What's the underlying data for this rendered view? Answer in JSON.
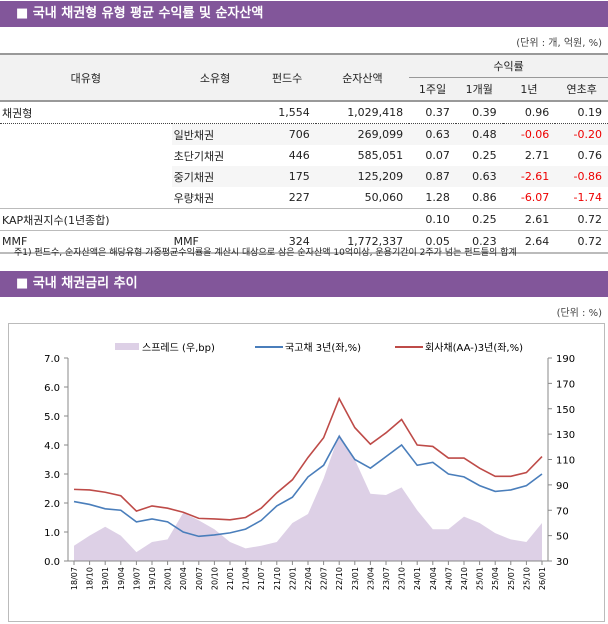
{
  "section1": {
    "title": "■ 국내 채권형 유형 평균 수익률 및 순자산액",
    "unit": "(단위 : 개, 억원, %)"
  },
  "table": {
    "headers": {
      "major": "대유형",
      "minor": "소유형",
      "funds": "펀드수",
      "aum": "순자산액",
      "returns": "수익률",
      "w1": "1주일",
      "m1": "1개월",
      "y1": "1년",
      "ytd": "연초후"
    },
    "rows": [
      {
        "major": "채권형",
        "minor": "",
        "funds": "1,554",
        "aum": "1,029,418",
        "w1": "0.37",
        "m1": "0.39",
        "y1": "0.96",
        "ytd": "0.19"
      },
      {
        "major": "",
        "minor": "일반채권",
        "funds": "706",
        "aum": "269,099",
        "w1": "0.63",
        "m1": "0.48",
        "y1": "-0.06",
        "ytd": "-0.20"
      },
      {
        "major": "",
        "minor": "초단기채권",
        "funds": "446",
        "aum": "585,051",
        "w1": "0.07",
        "m1": "0.25",
        "y1": "2.71",
        "ytd": "0.76"
      },
      {
        "major": "",
        "minor": "중기채권",
        "funds": "175",
        "aum": "125,209",
        "w1": "0.87",
        "m1": "0.63",
        "y1": "-2.61",
        "ytd": "-0.86"
      },
      {
        "major": "",
        "minor": "우량채권",
        "funds": "227",
        "aum": "50,060",
        "w1": "1.28",
        "m1": "0.86",
        "y1": "-6.07",
        "ytd": "-1.74"
      },
      {
        "major": "KAP채권지수(1년종합)",
        "minor": "",
        "funds": "",
        "aum": "",
        "w1": "0.10",
        "m1": "0.25",
        "y1": "2.61",
        "ytd": "0.72"
      },
      {
        "major": "MMF",
        "minor": "MMF",
        "funds": "324",
        "aum": "1,772,337",
        "w1": "0.05",
        "m1": "0.23",
        "y1": "2.64",
        "ytd": "0.72"
      }
    ],
    "note": "주1) 펀드수, 순자산액은 해당유형 가중평균수익률을 계산시 대상으로 삼은 순자산액 10억이상, 운용기간이 2주가 넘는 펀드들의 합계"
  },
  "section2": {
    "title": "■ 국내 채권금리 추이",
    "unit": "(단위 : %)"
  },
  "chart_data": {
    "type": "line",
    "x": [
      "18/07",
      "18/10",
      "19/01",
      "19/04",
      "19/07",
      "19/10",
      "20/01",
      "20/04",
      "20/07",
      "20/10",
      "21/01",
      "21/04",
      "21/07",
      "21/10",
      "22/01",
      "22/04",
      "22/07",
      "22/10",
      "23/01",
      "23/04",
      "23/07",
      "23/10",
      "24/01",
      "24/04",
      "24/07",
      "24/10",
      "25/01",
      "25/04",
      "25/07",
      "25/10",
      "26/01"
    ],
    "series": [
      {
        "name": "스프레드 (우,bp)",
        "type": "area",
        "axis": "right",
        "color": "#ddd0e6",
        "values": [
          42,
          50,
          57,
          50,
          37,
          45,
          47,
          68,
          62,
          55,
          45,
          40,
          42,
          45,
          60,
          67,
          95,
          130,
          110,
          83,
          82,
          88,
          70,
          55,
          55,
          65,
          60,
          52,
          47,
          45,
          60
        ]
      },
      {
        "name": "국고채 3년(좌,%)",
        "type": "line",
        "axis": "left",
        "color": "#4a7ebb",
        "values": [
          2.05,
          1.95,
          1.8,
          1.75,
          1.35,
          1.45,
          1.35,
          1.0,
          0.85,
          0.9,
          0.97,
          1.1,
          1.4,
          1.9,
          2.2,
          2.9,
          3.3,
          4.3,
          3.5,
          3.2,
          3.6,
          4.0,
          3.3,
          3.4,
          3.0,
          2.9,
          2.6,
          2.4,
          2.45,
          2.6,
          3.0
        ]
      },
      {
        "name": "회사채(AA-)3년(좌,%)",
        "type": "line",
        "axis": "left",
        "color": "#be4b48",
        "values": [
          2.47,
          2.45,
          2.37,
          2.25,
          1.72,
          1.9,
          1.82,
          1.68,
          1.47,
          1.45,
          1.42,
          1.5,
          1.82,
          2.35,
          2.8,
          3.57,
          4.25,
          5.6,
          4.6,
          4.03,
          4.42,
          4.88,
          4.0,
          3.95,
          3.55,
          3.55,
          3.2,
          2.92,
          2.92,
          3.05,
          3.6
        ]
      }
    ],
    "yleft": {
      "min": 0,
      "max": 7,
      "ticks": [
        "0.0",
        "1.0",
        "2.0",
        "3.0",
        "4.0",
        "5.0",
        "6.0",
        "7.0"
      ]
    },
    "yright": {
      "min": 30,
      "max": 190,
      "ticks": [
        "30",
        "50",
        "70",
        "90",
        "110",
        "130",
        "150",
        "170",
        "190"
      ]
    },
    "legend": "top"
  }
}
